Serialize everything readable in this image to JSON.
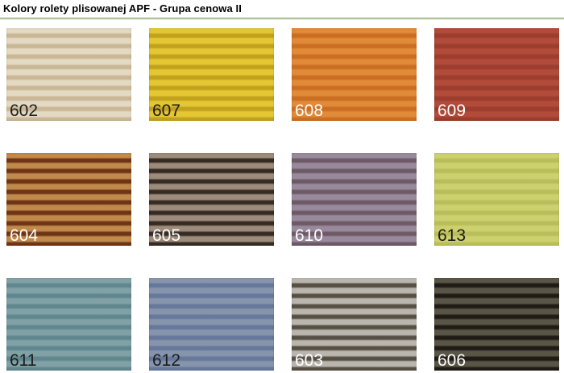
{
  "page": {
    "title": "Kolory rolety plisowanej APF - Grupa cenowa II",
    "divider_color_top": "#eef3e4",
    "divider_color_bottom": "#8fa97a"
  },
  "swatches": [
    {
      "code": "602",
      "stripe_light": "#e4dac3",
      "stripe_dark": "#c9b795",
      "label_color": "#1c1c1c"
    },
    {
      "code": "607",
      "stripe_light": "#e5c733",
      "stripe_dark": "#c2a21c",
      "label_color": "#1c1c1c"
    },
    {
      "code": "608",
      "stripe_light": "#e18a38",
      "stripe_dark": "#cb6e23",
      "label_color": "#ffffff"
    },
    {
      "code": "609",
      "stripe_light": "#b24b3a",
      "stripe_dark": "#9c3d2e",
      "label_color": "#ffffff"
    },
    {
      "code": "604",
      "stripe_light": "#c1894a",
      "stripe_dark": "#6d3416",
      "label_color": "#ffffff"
    },
    {
      "code": "605",
      "stripe_light": "#9d8b7b",
      "stripe_dark": "#362b22",
      "label_color": "#ffffff"
    },
    {
      "code": "610",
      "stripe_light": "#988a9c",
      "stripe_dark": "#6e5a66",
      "label_color": "#ffffff"
    },
    {
      "code": "613",
      "stripe_light": "#cdd06f",
      "stripe_dark": "#babe5a",
      "label_color": "#1c1c1c"
    },
    {
      "code": "611",
      "stripe_light": "#80a2a6",
      "stripe_dark": "#61878e",
      "label_color": "#1c1c1c"
    },
    {
      "code": "612",
      "stripe_light": "#8795ac",
      "stripe_dark": "#66789b",
      "label_color": "#1c1c1c"
    },
    {
      "code": "603",
      "stripe_light": "#bab6ae",
      "stripe_dark": "#564f44",
      "label_color": "#ffffff"
    },
    {
      "code": "606",
      "stripe_light": "#595547",
      "stripe_dark": "#201c15",
      "label_color": "#ffffff"
    }
  ]
}
